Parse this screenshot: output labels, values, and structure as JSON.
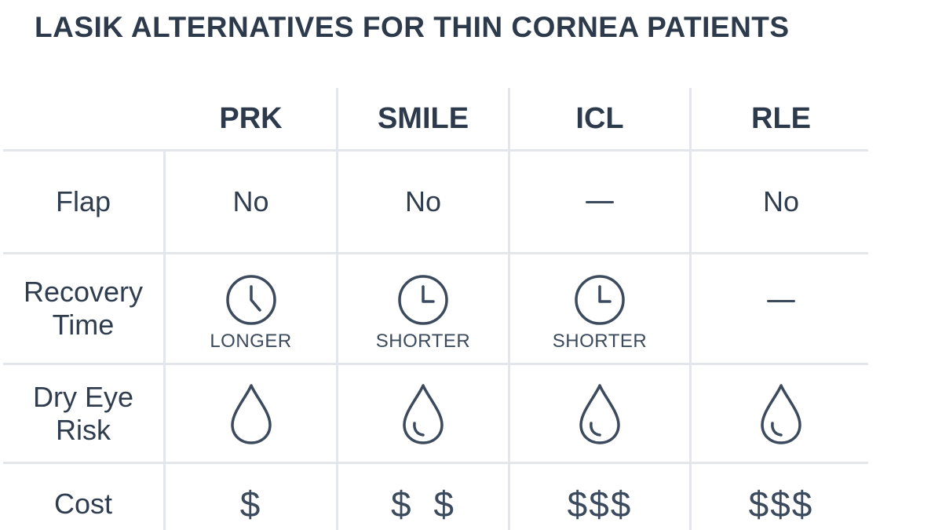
{
  "title": "LASIK ALTERNATIVES FOR THIN CORNEA PATIENTS",
  "columns": [
    "PRK",
    "SMILE",
    "ICL",
    "RLE"
  ],
  "rows": {
    "flap": {
      "label": "Flap",
      "values": [
        "No",
        "No",
        "",
        "No"
      ],
      "dash": [
        false,
        false,
        true,
        false
      ]
    },
    "recovery": {
      "label_line1": "Recovery",
      "label_line2": "Time",
      "captions": [
        "LONGER",
        "SHORTER",
        "SHORTER",
        ""
      ],
      "icon": "clock-icon"
    },
    "dry_eye": {
      "label_line1": "Dry Eye",
      "label_line2": "Risk",
      "icon": "water-drop-icon"
    },
    "cost": {
      "label": "Cost",
      "values": [
        "$",
        "$ $",
        "$$$",
        "$$$"
      ]
    }
  },
  "colors": {
    "text": "#2f3d4f",
    "icon_stroke": "#3b4a5c",
    "grid": "#e3e7ec"
  }
}
